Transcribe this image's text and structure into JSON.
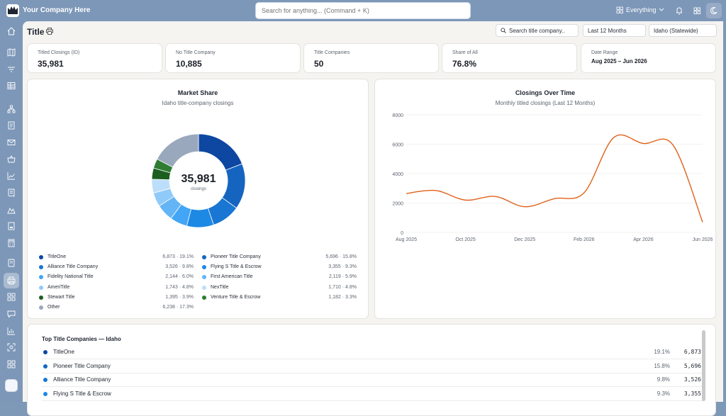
{
  "app": {
    "company": "Your Company Here",
    "search_placeholder": "Search for anything... (Command + K)",
    "scope_label": "Everything"
  },
  "page": {
    "title": "Title",
    "filters": {
      "search_placeholder": "Search title company..",
      "period": "Last 12 Months",
      "region": "Idaho (Statewide)"
    }
  },
  "stats": [
    {
      "label": "Titled Closings (ID)",
      "value": "35,981"
    },
    {
      "label": "No Title Company",
      "value": "10,885"
    },
    {
      "label": "Title Companies",
      "value": "50"
    },
    {
      "label": "Share of All",
      "value": "76.8%"
    },
    {
      "label": "Date Range",
      "value": "Aug 2025 – Jun 2026"
    }
  ],
  "market_share": {
    "title": "Market Share",
    "subtitle": "Idaho title-company closings",
    "center_value": "35,981",
    "center_label": "closings",
    "legend": [
      {
        "name": "TitleOne",
        "value": "6,873 · 19.1%",
        "color": "#0d47a1"
      },
      {
        "name": "Pioneer Title Company",
        "value": "5,696 · 15.8%",
        "color": "#1565c0"
      },
      {
        "name": "Alliance Title Company",
        "value": "3,526 · 9.8%",
        "color": "#1976d2"
      },
      {
        "name": "Flying S Title & Escrow",
        "value": "3,355 · 9.3%",
        "color": "#1e88e5"
      },
      {
        "name": "Fidelity National Title",
        "value": "2,144 · 6.0%",
        "color": "#42a5f5"
      },
      {
        "name": "First American Title",
        "value": "2,119 · 5.9%",
        "color": "#64b5f6"
      },
      {
        "name": "AmeriTitle",
        "value": "1,743 · 4.8%",
        "color": "#90caf9"
      },
      {
        "name": "NexTitle",
        "value": "1,710 · 4.8%",
        "color": "#bbdefb"
      },
      {
        "name": "Stewart Title",
        "value": "1,395 · 3.9%",
        "color": "#1b5e20"
      },
      {
        "name": "Venture Title & Escrow",
        "value": "1,182 · 3.3%",
        "color": "#2e7d32"
      },
      {
        "name": "Other",
        "value": "6,238 · 17.3%",
        "color": "#9aa8bd"
      }
    ]
  },
  "chart_data": {
    "type": "line",
    "title": "Closings Over Time",
    "subtitle": "Monthly titled closings (Last 12 Months)",
    "x": [
      "Aug 2025",
      "Sep 2025",
      "Oct 2025",
      "Nov 2025",
      "Dec 2025",
      "Jan 2026",
      "Feb 2026",
      "Mar 2026",
      "Apr 2026",
      "May 2026",
      "Jun 2026"
    ],
    "x_tick_labels": [
      "Aug 2025",
      "Oct 2025",
      "Dec 2025",
      "Feb 2026",
      "Apr 2026",
      "Jun 2026"
    ],
    "values": [
      2650,
      2850,
      2200,
      2450,
      1750,
      2300,
      2700,
      6450,
      6050,
      5950,
      700
    ],
    "ylim": [
      0,
      8000
    ],
    "yticks": [
      0,
      2000,
      4000,
      6000,
      8000
    ],
    "grid": true,
    "color": "#e0611a"
  },
  "top_table": {
    "title": "Top Title Companies — Idaho",
    "rows": [
      {
        "name": "TitleOne",
        "pct": "19.1%",
        "count": "6,873",
        "color": "#0d47a1"
      },
      {
        "name": "Pioneer Title Company",
        "pct": "15.8%",
        "count": "5,696",
        "color": "#1565c0"
      },
      {
        "name": "Alliance Title Company",
        "pct": "9.8%",
        "count": "3,526",
        "color": "#1976d2"
      },
      {
        "name": "Flying S Title & Escrow",
        "pct": "9.3%",
        "count": "3,355",
        "color": "#1e88e5"
      }
    ]
  }
}
